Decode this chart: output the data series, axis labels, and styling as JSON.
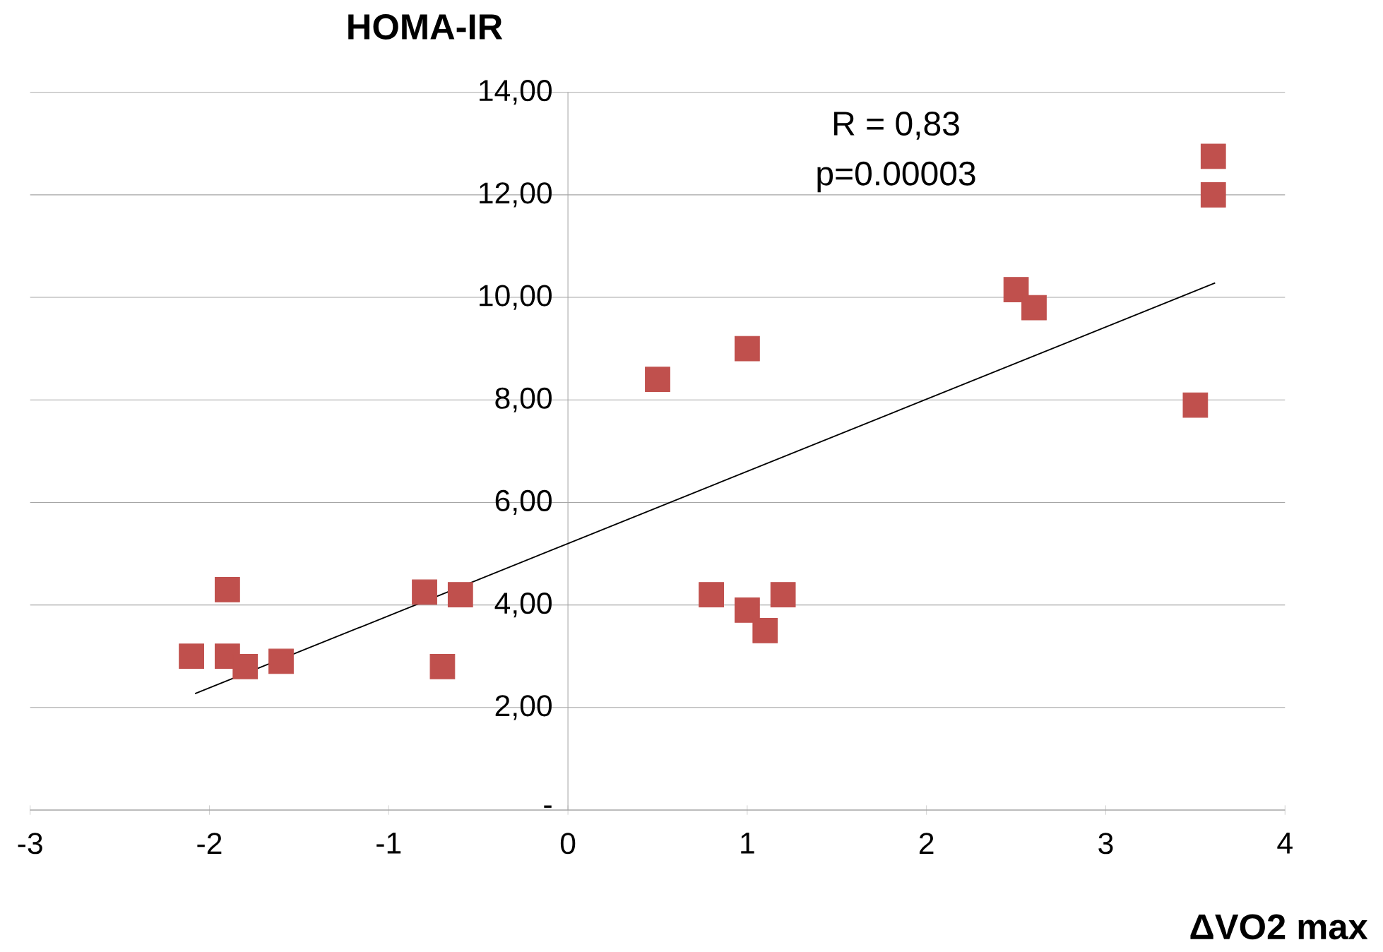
{
  "chart_data": {
    "type": "scatter",
    "xlabel": "ΔVO2 max",
    "ylabel": "HOMA-IR",
    "annotations": [
      "R = 0,83",
      "p=0.00003"
    ],
    "xlim": [
      -3,
      4
    ],
    "ylim": [
      0,
      14
    ],
    "xticks": [
      -3,
      -2,
      -1,
      0,
      1,
      2,
      3,
      4
    ],
    "yticks": [
      {
        "value": 0,
        "label": "-"
      },
      {
        "value": 2,
        "label": "2,00"
      },
      {
        "value": 4,
        "label": "4,00"
      },
      {
        "value": 6,
        "label": "6,00"
      },
      {
        "value": 8,
        "label": "8,00"
      },
      {
        "value": 10,
        "label": "10,00"
      },
      {
        "value": 12,
        "label": "12,00"
      },
      {
        "value": 14,
        "label": "14,00"
      }
    ],
    "grid": "y",
    "marker": "square",
    "series": [
      {
        "color": "#c0504d",
        "x": [
          -2.1,
          -1.9,
          -1.9,
          -1.8,
          -1.6,
          -0.8,
          -0.6,
          -0.7,
          0.5,
          1.0,
          0.8,
          1.0,
          1.1,
          1.2,
          2.5,
          2.6,
          3.5,
          3.6,
          3.6
        ],
        "values": [
          3.0,
          4.3,
          3.0,
          2.8,
          2.9,
          4.25,
          4.2,
          2.8,
          8.4,
          9.0,
          4.2,
          3.9,
          3.5,
          4.2,
          10.15,
          9.8,
          7.9,
          12.75,
          12.0
        ]
      },
      {
        "type": "line",
        "color": "#000000",
        "marker": "none",
        "x": [
          -2.08,
          3.61
        ],
        "values": [
          2.27,
          10.28
        ]
      }
    ]
  }
}
